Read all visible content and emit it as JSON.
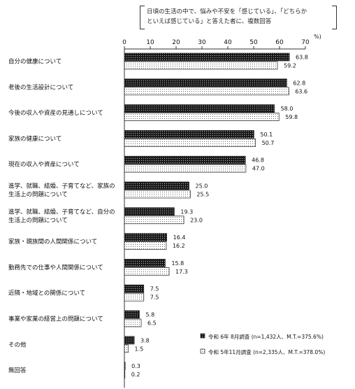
{
  "note": {
    "line1": "日頃の生活の中で、悩みや不安を「感じている」、「どちらか",
    "line2": "といえば感じている」と答えた者に、複数回答"
  },
  "chart_data": {
    "type": "bar",
    "orientation": "horizontal",
    "unit": "%)",
    "xlim": [
      0,
      70
    ],
    "ticks": [
      "0",
      "10",
      "20",
      "30",
      "40",
      "50",
      "60",
      "70"
    ],
    "grid": false,
    "legend_position": "bottom-right",
    "categories": [
      [
        "自分の健康について"
      ],
      [
        "老後の生活設計について"
      ],
      [
        "今後の収入や資産の見通しについて"
      ],
      [
        "家族の健康について"
      ],
      [
        "現在の収入や資産について"
      ],
      [
        "進学、就職、結婚、子育てなど、家族の",
        "生活上の問題について"
      ],
      [
        "進学、就職、結婚、子育てなど、自分の",
        "生活上の問題について"
      ],
      [
        "家族・親族間の人間関係について"
      ],
      [
        "勤務先での仕事や人間関係について"
      ],
      [
        "近隣・地域との関係について"
      ],
      [
        "事業や家業の経営上の問題について"
      ],
      [
        "その他"
      ],
      [
        "無回答"
      ]
    ],
    "series": [
      {
        "name": "令和 6年 8月調査 (n=1,432人、M.T.=375.6%)",
        "style": "dark-dotted",
        "values": [
          63.8,
          62.8,
          58.0,
          50.1,
          46.8,
          25.0,
          19.3,
          16.4,
          15.8,
          7.5,
          5.8,
          3.8,
          0.3
        ],
        "labels": [
          "63.8",
          "62.8",
          "58.0",
          "50.1",
          "46.8",
          "25.0",
          "19.3",
          "16.4",
          "15.8",
          "7.5",
          "5.8",
          "3.8",
          "0.3"
        ]
      },
      {
        "name": "令和 5年11月調査 (n=2,335人、M.T.=378.0%)",
        "style": "light-dotted",
        "values": [
          59.2,
          63.6,
          59.8,
          50.7,
          47.0,
          25.5,
          23.0,
          16.2,
          17.3,
          7.5,
          6.5,
          1.5,
          0.2
        ],
        "labels": [
          "59.2",
          "63.6",
          "59.8",
          "50.7",
          "47.0",
          "25.5",
          "23.0",
          "16.2",
          "17.3",
          "7.5",
          "6.5",
          "1.5",
          "0.2"
        ]
      }
    ]
  }
}
